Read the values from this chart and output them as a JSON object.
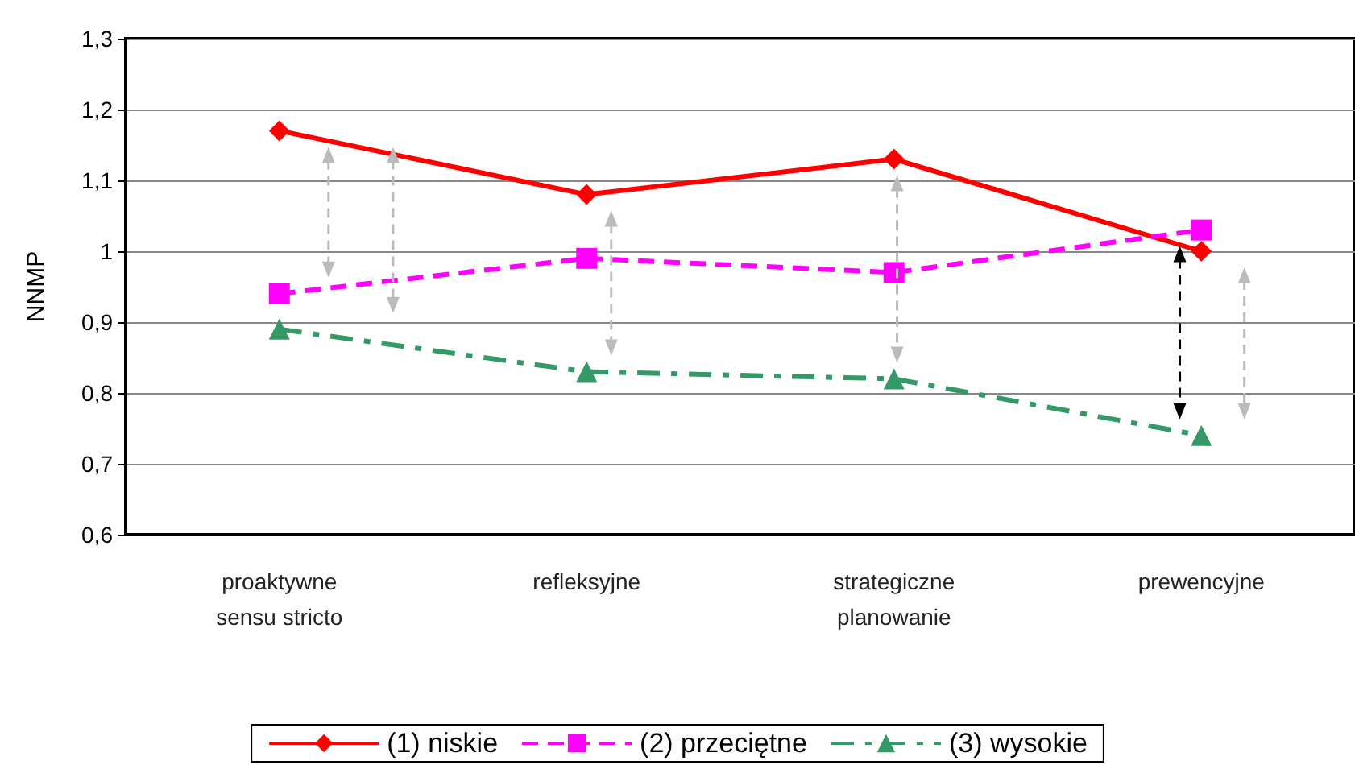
{
  "chart_data": {
    "type": "line",
    "ylabel": "NNMP",
    "categories": [
      "proaktywne\nsensu stricto",
      "refleksyjne",
      "strategiczne\nplanowanie",
      "prewencyjne"
    ],
    "series": [
      {
        "name": "(1) niskie",
        "color": "#ff0000",
        "marker": "diamond",
        "line_style": "solid",
        "values": [
          1.17,
          1.08,
          1.13,
          1.0
        ]
      },
      {
        "name": "(2) przeciętne",
        "color": "#ff00ff",
        "marker": "square",
        "line_style": "dashed",
        "values": [
          0.94,
          0.99,
          0.97,
          1.03
        ]
      },
      {
        "name": "(3) wysokie",
        "color": "#339966",
        "marker": "triangle",
        "line_style": "dashdot",
        "values": [
          0.89,
          0.83,
          0.82,
          0.74
        ]
      }
    ],
    "ylim": [
      0.6,
      1.3
    ],
    "yticks": [
      {
        "value": 0.6,
        "label": "0,6"
      },
      {
        "value": 0.7,
        "label": "0,7"
      },
      {
        "value": 0.8,
        "label": "0,8"
      },
      {
        "value": 0.9,
        "label": "0,9"
      },
      1,
      {
        "value": 1.1,
        "label": "1,1"
      },
      {
        "value": 1.2,
        "label": "1,2"
      },
      {
        "value": 1.3,
        "label": "1,3"
      }
    ],
    "grid": "y",
    "legend": "bottom"
  }
}
